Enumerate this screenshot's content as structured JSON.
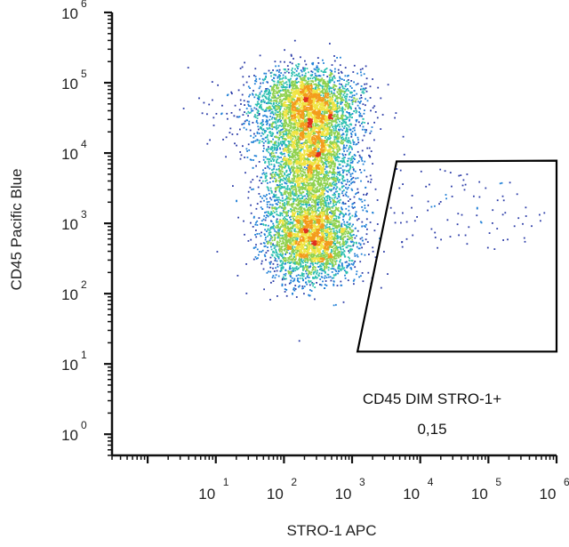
{
  "chart_data": {
    "type": "scatter",
    "plot_style": "density dot plot (flow cytometry)",
    "xlabel": "STRO-1 APC",
    "ylabel": "CD45 Pacific Blue",
    "x_scale": "log",
    "y_scale": "log",
    "xlim": [
      0.3,
      1000000
    ],
    "ylim": [
      0.5,
      1000000
    ],
    "x_ticks": [
      {
        "base": "10",
        "exp": "1",
        "value": 10
      },
      {
        "base": "10",
        "exp": "2",
        "value": 100
      },
      {
        "base": "10",
        "exp": "3",
        "value": 1000
      },
      {
        "base": "10",
        "exp": "4",
        "value": 10000
      },
      {
        "base": "10",
        "exp": "5",
        "value": 100000
      },
      {
        "base": "10",
        "exp": "6",
        "value": 1000000
      }
    ],
    "y_ticks": [
      {
        "base": "10",
        "exp": "0",
        "value": 1
      },
      {
        "base": "10",
        "exp": "1",
        "value": 10
      },
      {
        "base": "10",
        "exp": "2",
        "value": 100
      },
      {
        "base": "10",
        "exp": "3",
        "value": 1000
      },
      {
        "base": "10",
        "exp": "4",
        "value": 10000
      },
      {
        "base": "10",
        "exp": "5",
        "value": 100000
      },
      {
        "base": "10",
        "exp": "6",
        "value": 1000000
      }
    ],
    "populations": [
      {
        "x_center": 250,
        "y_center": 600,
        "description": "CD45 low cluster"
      },
      {
        "x_center": 250,
        "y_center": 13000,
        "description": "CD45 high cluster"
      },
      {
        "x_center": 220,
        "y_center": 60000,
        "description": "CD45 very high region"
      }
    ],
    "density_colors": [
      "#2b3ca8",
      "#1f7fd6",
      "#2bbfb0",
      "#8fd14f",
      "#f0e442",
      "#f39c1d",
      "#e0301e"
    ],
    "gate": {
      "name": "CD45 DIM STRO-1+",
      "value": "0,15",
      "vertices": [
        [
          1200,
          15
        ],
        [
          4500,
          7600
        ],
        [
          1000000,
          7800
        ],
        [
          1000000,
          15
        ]
      ],
      "color": "#000000"
    },
    "grid": false,
    "legend": "none"
  }
}
